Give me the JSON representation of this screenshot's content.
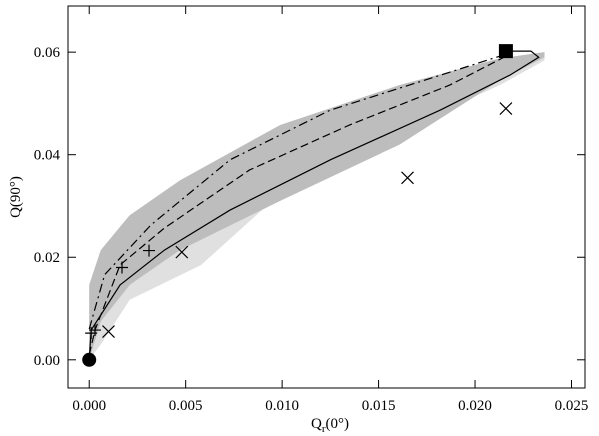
{
  "chart_data": {
    "type": "scatter",
    "xlabel": [
      "Q",
      "r",
      "(0°)"
    ],
    "ylabel": "Q(90°)",
    "xlim": [
      -0.0011,
      0.0257
    ],
    "ylim": [
      -0.0055,
      0.069
    ],
    "xticks": [
      {
        "value": 0,
        "label": "0.000"
      },
      {
        "value": 0.005,
        "label": "0.005"
      },
      {
        "value": 0.01,
        "label": "0.010"
      },
      {
        "value": 0.015,
        "label": "0.015"
      },
      {
        "value": 0.02,
        "label": "0.020"
      },
      {
        "value": 0.025,
        "label": "0.025"
      }
    ],
    "yticks": [
      {
        "value": 0,
        "label": "0.00"
      },
      {
        "value": 0.02,
        "label": "0.02"
      },
      {
        "value": 0.04,
        "label": "0.04"
      },
      {
        "value": 0.06,
        "label": "0.06"
      }
    ],
    "bands": [
      {
        "color": "#e0e0e0",
        "x": [
          0,
          0.0006,
          0.0021,
          0.0058,
          0.0104,
          0.0161,
          0.0213,
          0.0236
        ],
        "upper": [
          0.0146,
          0.0214,
          0.0282,
          0.035,
          0.0458,
          0.0536,
          0.0588,
          0.06
        ],
        "lower": [
          0,
          0.003,
          0.0117,
          0.0185,
          0.0341,
          0.0448,
          0.0536,
          0.0584
        ]
      },
      {
        "color": "#bdbdbd",
        "x": [
          0,
          0.0006,
          0.0021,
          0.0047,
          0.0099,
          0.0161,
          0.0213,
          0.0236
        ],
        "upper": [
          0.0146,
          0.0214,
          0.0282,
          0.035,
          0.0458,
          0.0536,
          0.0588,
          0.06
        ],
        "lower": [
          0,
          0.0075,
          0.0146,
          0.0214,
          0.031,
          0.042,
          0.0545,
          0.059
        ]
      }
    ],
    "lines": [
      {
        "style": "solid",
        "x": [
          0,
          0.0001,
          0.0016,
          0.0039,
          0.0073,
          0.0125,
          0.0182,
          0.0218,
          0.0233,
          0.0229,
          0.0216
        ],
        "y": [
          0,
          0.0058,
          0.0146,
          0.0214,
          0.0292,
          0.039,
          0.0487,
          0.0555,
          0.059,
          0.0602,
          0.0602
        ]
      },
      {
        "style": "dashed",
        "x": [
          0,
          0.0003,
          0.0016,
          0.0039,
          0.0083,
          0.0135,
          0.0187,
          0.0216
        ],
        "y": [
          0.001,
          0.0058,
          0.0185,
          0.0257,
          0.037,
          0.0458,
          0.0536,
          0.0592
        ]
      },
      {
        "style": "dashdot",
        "x": [
          0,
          0.0008,
          0.0032,
          0.0073,
          0.0125,
          0.0182,
          0.0216
        ],
        "y": [
          0.006,
          0.0166,
          0.0263,
          0.039,
          0.0487,
          0.0555,
          0.0596
        ]
      }
    ],
    "series": [
      {
        "marker": "plus",
        "x": [
          0.0001,
          0.0003,
          0.0017,
          0.0031
        ],
        "y": [
          0.0052,
          0.0058,
          0.018,
          0.0213
        ]
      },
      {
        "marker": "cross",
        "x": [
          0.001,
          0.0048,
          0.0165,
          0.0216
        ],
        "y": [
          0.0055,
          0.021,
          0.0355,
          0.049
        ]
      },
      {
        "marker": "circle",
        "x": [
          0
        ],
        "y": [
          0
        ]
      },
      {
        "marker": "square",
        "x": [
          0.0216
        ],
        "y": [
          0.0602
        ]
      }
    ]
  }
}
